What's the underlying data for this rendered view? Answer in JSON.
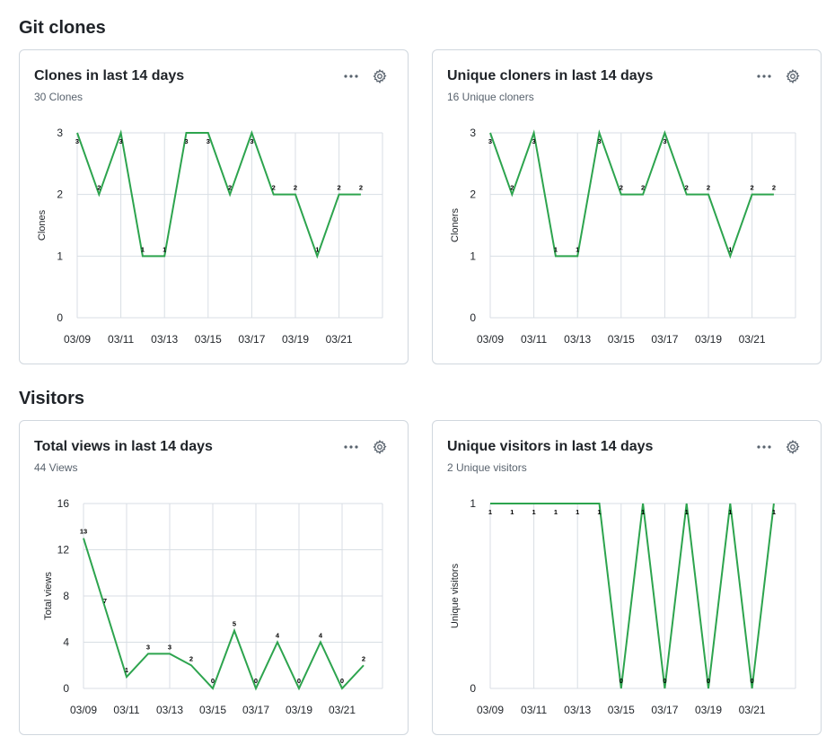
{
  "sections": {
    "git_clones": "Git clones",
    "visitors": "Visitors"
  },
  "colors": {
    "line": "#2da44e",
    "grid": "#d8dee4"
  },
  "icons": {
    "more": "kebab-horizontal-icon",
    "settings": "gear-icon"
  },
  "cards": [
    {
      "title": "Clones in last 14 days",
      "subtitle": "30 Clones",
      "chart_data": {
        "type": "line",
        "ylabel": "Clones",
        "x": [
          "03/09",
          "03/10",
          "03/11",
          "03/12",
          "03/13",
          "03/14",
          "03/15",
          "03/16",
          "03/17",
          "03/18",
          "03/19",
          "03/20",
          "03/21",
          "03/22"
        ],
        "xticks": [
          "03/09",
          "03/11",
          "03/13",
          "03/15",
          "03/17",
          "03/19",
          "03/21"
        ],
        "ylim": [
          0,
          3
        ],
        "yticks": [
          0,
          1,
          2,
          3
        ],
        "values": [
          3,
          2,
          3,
          1,
          1,
          3,
          3,
          2,
          3,
          2,
          2,
          1,
          2,
          2
        ]
      }
    },
    {
      "title": "Unique cloners in last 14 days",
      "subtitle": "16 Unique cloners",
      "chart_data": {
        "type": "line",
        "ylabel": "Cloners",
        "x": [
          "03/09",
          "03/10",
          "03/11",
          "03/12",
          "03/13",
          "03/14",
          "03/15",
          "03/16",
          "03/17",
          "03/18",
          "03/19",
          "03/20",
          "03/21",
          "03/22"
        ],
        "xticks": [
          "03/09",
          "03/11",
          "03/13",
          "03/15",
          "03/17",
          "03/19",
          "03/21"
        ],
        "ylim": [
          0,
          3
        ],
        "yticks": [
          0,
          1,
          2,
          3
        ],
        "values": [
          3,
          2,
          3,
          1,
          1,
          3,
          2,
          2,
          3,
          2,
          2,
          1,
          2,
          2
        ]
      }
    },
    {
      "title": "Total views in last 14 days",
      "subtitle": "44 Views",
      "chart_data": {
        "type": "line",
        "ylabel": "Total views",
        "x": [
          "03/09",
          "03/10",
          "03/11",
          "03/12",
          "03/13",
          "03/14",
          "03/15",
          "03/16",
          "03/17",
          "03/18",
          "03/19",
          "03/20",
          "03/21",
          "03/22"
        ],
        "xticks": [
          "03/09",
          "03/11",
          "03/13",
          "03/15",
          "03/17",
          "03/19",
          "03/21"
        ],
        "ylim": [
          0,
          16
        ],
        "yticks": [
          0,
          4,
          8,
          12,
          16
        ],
        "values": [
          13,
          7,
          1,
          3,
          3,
          2,
          0,
          5,
          0,
          4,
          0,
          4,
          0,
          2
        ]
      }
    },
    {
      "title": "Unique visitors in last 14 days",
      "subtitle": "2 Unique visitors",
      "chart_data": {
        "type": "line",
        "ylabel": "Unique visitors",
        "x": [
          "03/09",
          "03/10",
          "03/11",
          "03/12",
          "03/13",
          "03/14",
          "03/15",
          "03/16",
          "03/17",
          "03/18",
          "03/19",
          "03/20",
          "03/21",
          "03/22"
        ],
        "xticks": [
          "03/09",
          "03/11",
          "03/13",
          "03/15",
          "03/17",
          "03/19",
          "03/21"
        ],
        "ylim": [
          0,
          1
        ],
        "yticks": [
          0,
          1
        ],
        "values": [
          1,
          1,
          1,
          1,
          1,
          1,
          0,
          1,
          0,
          1,
          0,
          1,
          0,
          1
        ]
      }
    }
  ]
}
